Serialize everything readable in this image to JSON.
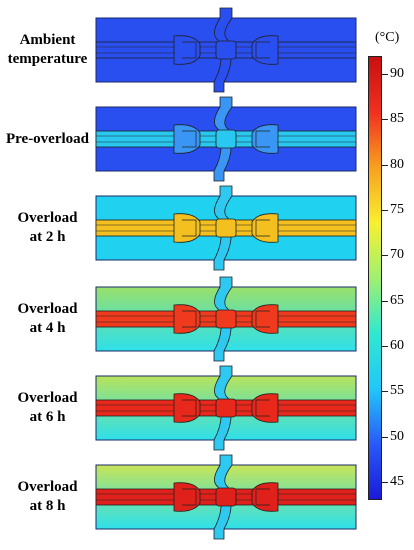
{
  "rows": [
    {
      "label_lines": [
        "Ambient",
        "temperature"
      ],
      "colors": {
        "bg": "#2a4ff0",
        "conductor": "#2a4ff0",
        "connector": "#2a4ff0"
      }
    },
    {
      "label_lines": [
        "Pre-overload"
      ],
      "colors": {
        "bg": "#2a4ff0",
        "conductor": "#28c8f0",
        "connector": "#3a96f5"
      }
    },
    {
      "label_lines": [
        "Overload",
        "at 2 h"
      ],
      "colors": {
        "bg": "#20d2f0",
        "conductor": "#f4c020",
        "connector": "#f4c020"
      }
    },
    {
      "label_lines": [
        "Overload",
        "at 4 h"
      ],
      "colors": {
        "bg": "#2ee0ea",
        "bg_top": "#9ae06a",
        "conductor": "#f03a1e",
        "connector": "#f03a1e"
      }
    },
    {
      "label_lines": [
        "Overload",
        "at 6 h"
      ],
      "colors": {
        "bg": "#2ee0ea",
        "bg_top": "#b8e25a",
        "conductor": "#e8281a",
        "connector": "#e8281a"
      }
    },
    {
      "label_lines": [
        "Overload",
        "at 8 h"
      ],
      "colors": {
        "bg": "#2ee0ea",
        "bg_top": "#c8e456",
        "conductor": "#e0201a",
        "connector": "#e0201a"
      }
    }
  ],
  "colorbar": {
    "unit": "(°C)",
    "min": 43,
    "max": 92,
    "ticks": [
      "45",
      "50",
      "55",
      "60",
      "65",
      "70",
      "75",
      "80",
      "85",
      "90"
    ],
    "colors": [
      "#1a1ad8",
      "#2a5af8",
      "#20c8f8",
      "#30e8d0",
      "#a0f070",
      "#f8f030",
      "#f8a020",
      "#f03020",
      "#c81010"
    ]
  }
}
